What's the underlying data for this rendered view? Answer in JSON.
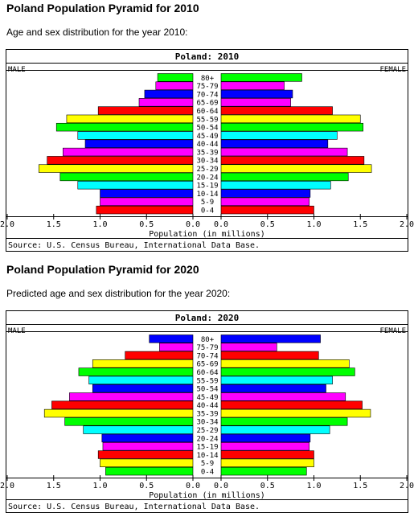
{
  "pyramids": [
    {
      "heading": "Poland Population Pyramid for 2010",
      "subheading": "Age and sex distribution for the year 2010:",
      "chart_data": {
        "type": "bar",
        "title": "Poland: 2010",
        "left_label": "MALE",
        "right_label": "FEMALE",
        "xlabel": "Population (in millions)",
        "source": "Source: U.S. Census Bureau, International Data Base.",
        "xlim": [
          0,
          2.0
        ],
        "x_ticks": [
          "2.0",
          "1.5",
          "1.0",
          "0.5",
          "0.0",
          "0.0",
          "0.5",
          "1.0",
          "1.5",
          "2.0"
        ],
        "categories": [
          "80+",
          "75-79",
          "70-74",
          "65-69",
          "60-64",
          "55-59",
          "50-54",
          "45-49",
          "40-44",
          "35-39",
          "30-34",
          "25-29",
          "20-24",
          "15-19",
          "10-14",
          "5-9",
          "0-4"
        ],
        "colors": [
          "#00ff00",
          "#ff00ff",
          "#0000ff",
          "#ff00ff",
          "#ff0000",
          "#ffff00",
          "#00ff00",
          "#00ffff",
          "#0000ff",
          "#ff00ff",
          "#ff0000",
          "#ffff00",
          "#00ff00",
          "#00ffff",
          "#0000ff",
          "#ff00ff",
          "#ff0000"
        ],
        "series": [
          {
            "name": "MALE",
            "values": [
              0.38,
              0.4,
              0.52,
              0.58,
              1.02,
              1.36,
              1.47,
              1.24,
              1.16,
              1.4,
              1.57,
              1.66,
              1.43,
              1.24,
              1.0,
              1.0,
              1.04
            ]
          },
          {
            "name": "FEMALE",
            "values": [
              0.87,
              0.68,
              0.77,
              0.75,
              1.2,
              1.5,
              1.53,
              1.25,
              1.15,
              1.36,
              1.54,
              1.62,
              1.37,
              1.18,
              0.96,
              0.95,
              1.0
            ]
          }
        ]
      }
    },
    {
      "heading": "Poland Population Pyramid for 2020",
      "subheading": "Predicted age and sex distribution for the year 2020:",
      "chart_data": {
        "type": "bar",
        "title": "Poland: 2020",
        "left_label": "MALE",
        "right_label": "FEMALE",
        "xlabel": "Population (in millions)",
        "source": "Source: U.S. Census Bureau, International Data Base.",
        "xlim": [
          0,
          2.0
        ],
        "x_ticks": [
          "2.0",
          "1.5",
          "1.0",
          "0.5",
          "0.0",
          "0.0",
          "0.5",
          "1.0",
          "1.5",
          "2.0"
        ],
        "categories": [
          "80+",
          "75-79",
          "70-74",
          "65-69",
          "60-64",
          "55-59",
          "50-54",
          "45-49",
          "40-44",
          "35-39",
          "30-34",
          "25-29",
          "20-24",
          "15-19",
          "10-14",
          "5-9",
          "0-4"
        ],
        "colors": [
          "#0000ff",
          "#ff00ff",
          "#ff0000",
          "#ffff00",
          "#00ff00",
          "#00ffff",
          "#0000ff",
          "#ff00ff",
          "#ff0000",
          "#ffff00",
          "#00ff00",
          "#00ffff",
          "#0000ff",
          "#ff00ff",
          "#ff0000",
          "#ffff00",
          "#00ff00"
        ],
        "series": [
          {
            "name": "MALE",
            "values": [
              0.47,
              0.36,
              0.73,
              1.08,
              1.23,
              1.12,
              1.08,
              1.33,
              1.52,
              1.6,
              1.38,
              1.18,
              0.98,
              0.97,
              1.02,
              1.0,
              0.94
            ]
          },
          {
            "name": "FEMALE",
            "values": [
              1.07,
              0.6,
              1.05,
              1.38,
              1.44,
              1.2,
              1.13,
              1.34,
              1.52,
              1.61,
              1.36,
              1.17,
              0.96,
              0.95,
              1.0,
              1.0,
              0.92
            ]
          }
        ]
      }
    }
  ]
}
